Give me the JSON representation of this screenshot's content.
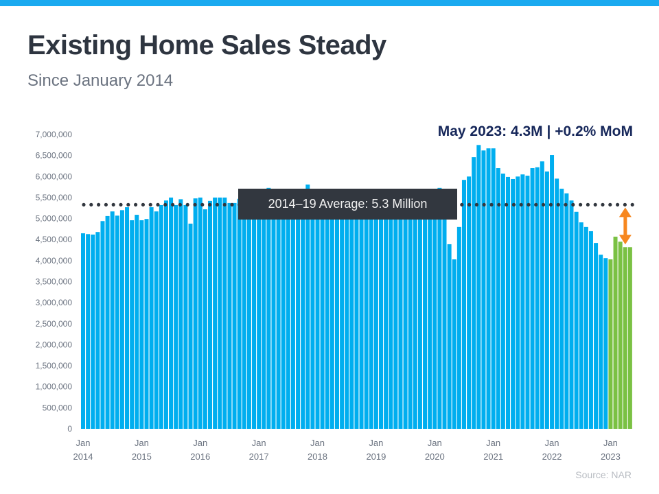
{
  "title": "Existing Home Sales Steady",
  "subtitle": "Since January 2014",
  "source": "Source: NAR",
  "colors": {
    "bar": "#00aeef",
    "highlight": "#7ac143",
    "average_line": "#32373f",
    "arrow": "#f7871f",
    "top_bar": "#1aaaf0"
  },
  "chart_data": {
    "type": "bar",
    "title": "Existing Home Sales Steady",
    "subtitle": "Since January 2014",
    "start": "2014-01",
    "frequency": "monthly",
    "ylim": [
      0,
      7000000
    ],
    "yticks": [
      "0",
      "500,000",
      "1,000,000",
      "1,500,000",
      "2,000,000",
      "2,500,000",
      "3,000,000",
      "3,500,000",
      "4,000,000",
      "4,500,000",
      "5,000,000",
      "5,500,000",
      "6,000,000",
      "6,500,000",
      "7,000,000"
    ],
    "xticks": [
      {
        "month": "Jan",
        "year": "2014"
      },
      {
        "month": "Jan",
        "year": "2015"
      },
      {
        "month": "Jan",
        "year": "2016"
      },
      {
        "month": "Jan",
        "year": "2017"
      },
      {
        "month": "Jan",
        "year": "2018"
      },
      {
        "month": "Jan",
        "year": "2019"
      },
      {
        "month": "Jan",
        "year": "2020"
      },
      {
        "month": "Jan",
        "year": "2021"
      },
      {
        "month": "Jan",
        "year": "2022"
      },
      {
        "month": "Jan",
        "year": "2023"
      }
    ],
    "values_millions": [
      4.65,
      4.63,
      4.62,
      4.68,
      4.94,
      5.06,
      5.17,
      5.07,
      5.2,
      5.27,
      4.96,
      5.09,
      4.96,
      4.99,
      5.27,
      5.17,
      5.32,
      5.43,
      5.5,
      5.32,
      5.46,
      5.32,
      4.88,
      5.48,
      5.5,
      5.22,
      5.42,
      5.5,
      5.5,
      5.5,
      5.37,
      5.37,
      5.47,
      5.6,
      5.61,
      5.49,
      5.69,
      5.48,
      5.73,
      5.57,
      5.62,
      5.52,
      5.44,
      5.35,
      5.39,
      5.48,
      5.81,
      5.57,
      5.38,
      5.54,
      5.6,
      5.46,
      5.43,
      5.38,
      5.34,
      5.34,
      5.15,
      5.22,
      5.32,
      5.02,
      5.02,
      5.49,
      5.21,
      5.19,
      5.34,
      5.27,
      5.42,
      5.49,
      5.38,
      5.46,
      5.35,
      5.54,
      5.42,
      5.73,
      5.27,
      4.39,
      4.03,
      4.8,
      5.92,
      6.0,
      6.46,
      6.75,
      6.62,
      6.67,
      6.67,
      6.2,
      6.07,
      5.99,
      5.94,
      6.0,
      6.05,
      6.02,
      6.2,
      6.22,
      6.36,
      6.12,
      6.51,
      5.95,
      5.71,
      5.6,
      5.43,
      5.16,
      4.91,
      4.8,
      4.7,
      4.42,
      4.14,
      4.06,
      4.03,
      4.57,
      4.45,
      4.32,
      4.32
    ],
    "highlight_from": "2023-01",
    "average": {
      "value_millions": 5.33,
      "label": "2014–19 Average: 5.3 Million"
    },
    "callout": "May 2023: 4.3M | +0.2% MoM",
    "grid": false,
    "legend": "none"
  }
}
